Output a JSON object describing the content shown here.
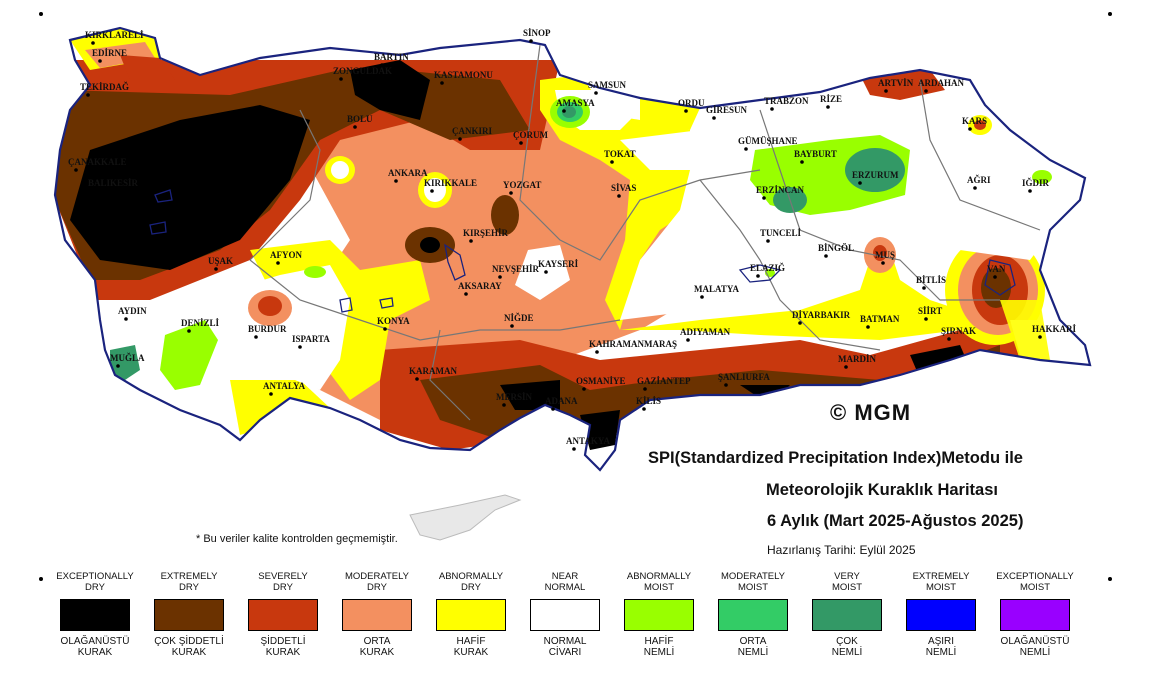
{
  "title": {
    "line1": "SPI(Standardized Precipitation Index)Metodu ile",
    "line2": "Meteorolojik Kuraklık Haritası",
    "line3": "6 Aylık (Mart 2025-Ağustos 2025)"
  },
  "prepared": "Hazırlanış Tarihi: Eylül 2025",
  "copyright": "© MGM",
  "qc_note": "* Bu veriler kalite kontrolden geçmemiştir.",
  "legend": [
    {
      "en": "EXCEPTIONALLY\nDRY",
      "tr": "OLAĞANÜSTÜ\nKURAK",
      "color": "#000000"
    },
    {
      "en": "EXTREMELY\nDRY",
      "tr": "ÇOK ŞİDDETLİ\nKURAK",
      "color": "#6b3200"
    },
    {
      "en": "SEVERELY\nDRY",
      "tr": "ŞİDDETLİ\nKURAK",
      "color": "#c8380e"
    },
    {
      "en": "MODERATELY\nDRY",
      "tr": "ORTA\nKURAK",
      "color": "#f39060"
    },
    {
      "en": "ABNORMALLY\nDRY",
      "tr": "HAFİF\nKURAK",
      "color": "#ffff00"
    },
    {
      "en": "NEAR\nNORMAL",
      "tr": "NORMAL\nCİVARI",
      "color": "#ffffff"
    },
    {
      "en": "ABNORMALLY\nMOIST",
      "tr": "HAFİF\nNEMLİ",
      "color": "#99ff00"
    },
    {
      "en": "MODERATELY\nMOIST",
      "tr": "ORTA\nNEMLİ",
      "color": "#33cc66"
    },
    {
      "en": "VERY\nMOIST",
      "tr": "ÇOK\nNEMLİ",
      "color": "#339966"
    },
    {
      "en": "EXTREMELY\nMOIST",
      "tr": "AŞIRI\nNEMLİ",
      "color": "#0000ff"
    },
    {
      "en": "EXCEPTIONALLY\nMOIST",
      "tr": "OLAĞANÜSTÜ\nNEMLİ",
      "color": "#9900ff"
    }
  ],
  "cities": [
    {
      "name": "KIRKLARELİ"
    },
    {
      "name": "EDİRNE"
    },
    {
      "name": "TEKİRDAĞ"
    },
    {
      "name": "ÇANAKKALE"
    },
    {
      "name": "BALIKESİR"
    },
    {
      "name": "SİNOP"
    },
    {
      "name": "BARTIN"
    },
    {
      "name": "ZONGULDAK"
    },
    {
      "name": "KASTAMONU"
    },
    {
      "name": "SAMSUN"
    },
    {
      "name": "ORDU"
    },
    {
      "name": "GİRESUN"
    },
    {
      "name": "TRABZON"
    },
    {
      "name": "RİZE"
    },
    {
      "name": "ARTVİN"
    },
    {
      "name": "ARDAHAN"
    },
    {
      "name": "BOLU"
    },
    {
      "name": "ÇANKIRI"
    },
    {
      "name": "ÇORUM"
    },
    {
      "name": "AMASYA"
    },
    {
      "name": "TOKAT"
    },
    {
      "name": "GÜMÜŞHANE"
    },
    {
      "name": "BAYBURT"
    },
    {
      "name": "KARS"
    },
    {
      "name": "ANKARA"
    },
    {
      "name": "KIRIKKALE"
    },
    {
      "name": "YOZGAT"
    },
    {
      "name": "SİVAS"
    },
    {
      "name": "ERZİNCAN"
    },
    {
      "name": "ERZURUM"
    },
    {
      "name": "AĞRI"
    },
    {
      "name": "IĞDIR"
    },
    {
      "name": "KIRŞEHİR"
    },
    {
      "name": "NEVŞEHİR"
    },
    {
      "name": "KAYSERİ"
    },
    {
      "name": "TUNCELİ"
    },
    {
      "name": "BİNGÖL"
    },
    {
      "name": "MUŞ"
    },
    {
      "name": "ELAZIĞ"
    },
    {
      "name": "AFYON"
    },
    {
      "name": "UŞAK"
    },
    {
      "name": "AKSARAY"
    },
    {
      "name": "MALATYA"
    },
    {
      "name": "BİTLİS"
    },
    {
      "name": "VAN"
    },
    {
      "name": "AYDIN"
    },
    {
      "name": "DENİZLİ"
    },
    {
      "name": "BURDUR"
    },
    {
      "name": "ISPARTA"
    },
    {
      "name": "KONYA"
    },
    {
      "name": "NİĞDE"
    },
    {
      "name": "DİYARBAKIR"
    },
    {
      "name": "BATMAN"
    },
    {
      "name": "SİİRT"
    },
    {
      "name": "ADIYAMAN"
    },
    {
      "name": "KAHRAMANMARAŞ"
    },
    {
      "name": "ŞIRNAK"
    },
    {
      "name": "HAKKARİ"
    },
    {
      "name": "MUĞLA"
    },
    {
      "name": "MARDİN"
    },
    {
      "name": "KARAMAN"
    },
    {
      "name": "OSMANİYE"
    },
    {
      "name": "GAZİANTEP"
    },
    {
      "name": "ŞANLIURFA"
    },
    {
      "name": "ANTALYA"
    },
    {
      "name": "MERSİN"
    },
    {
      "name": "ADANA"
    },
    {
      "name": "KİLİS"
    },
    {
      "name": "ANTAKYA"
    }
  ]
}
